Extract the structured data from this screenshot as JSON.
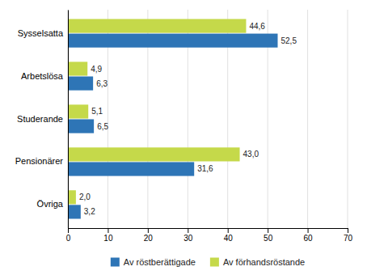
{
  "chart_data": {
    "type": "bar",
    "orientation": "horizontal",
    "categories": [
      "Sysselsatta",
      "Arbetslösa",
      "Studerande",
      "Pensionärer",
      "Övriga"
    ],
    "series": [
      {
        "name": "Av röstberättigade",
        "color": "#2e75b6",
        "values": [
          52.5,
          6.3,
          6.5,
          31.6,
          3.2
        ],
        "value_labels": [
          "52,5",
          "6,3",
          "6,5",
          "31,6",
          "3,2"
        ]
      },
      {
        "name": "Av förhandsröstande",
        "color": "#c5d94a",
        "values": [
          44.6,
          4.9,
          5.1,
          43.0,
          2.0
        ],
        "value_labels": [
          "44,6",
          "4,9",
          "5,1",
          "43,0",
          "2,0"
        ]
      }
    ],
    "xlim": [
      0,
      70
    ],
    "xticks": [
      0,
      10,
      20,
      30,
      40,
      50,
      60,
      70
    ],
    "grid": true,
    "data_labels": true,
    "legend": "bottom"
  }
}
